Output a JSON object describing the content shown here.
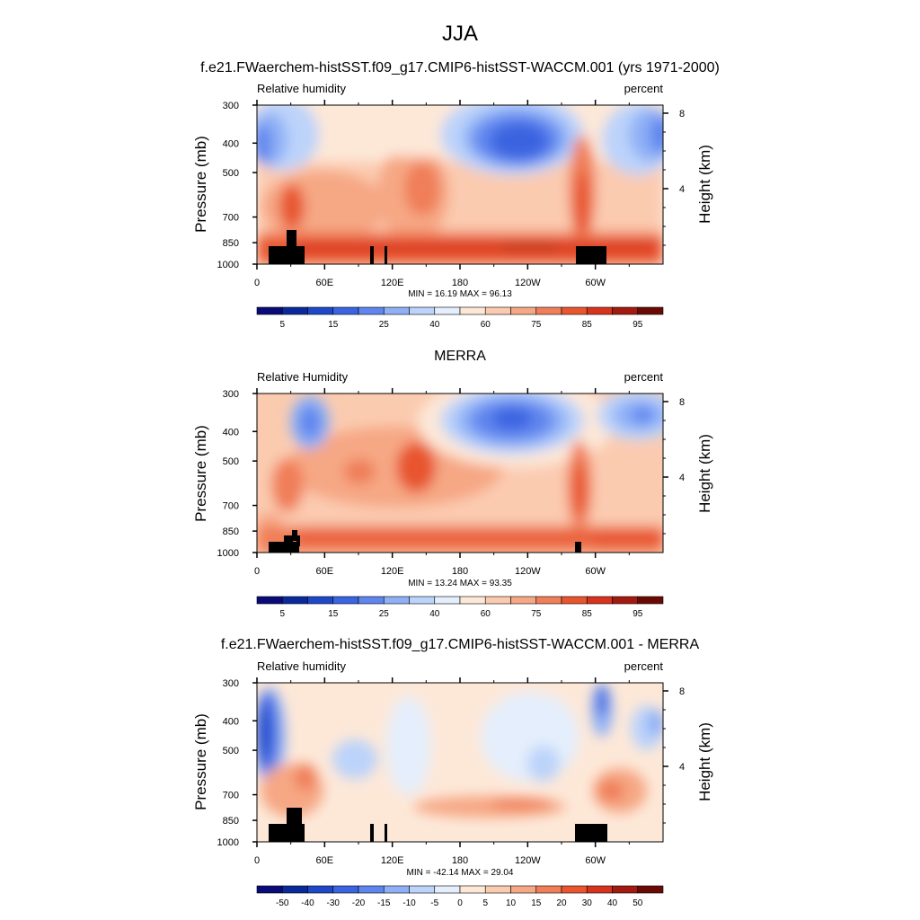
{
  "figure": {
    "title": "JJA"
  },
  "colorbar_colors_abs": [
    "#0a0a78",
    "#0a2a9c",
    "#1f48c8",
    "#3a64e0",
    "#5f85ee",
    "#8fb0f6",
    "#bcd3fa",
    "#e4eefc",
    "#fde8d8",
    "#fbcbb0",
    "#f6a784",
    "#f07e58",
    "#e8552f",
    "#d8331c",
    "#a31a10",
    "#6b0a05"
  ],
  "colorbar_colors_diff": [
    "#0a0a78",
    "#0a2a9c",
    "#1f48c8",
    "#3a64e0",
    "#5f85ee",
    "#8fb0f6",
    "#bcd3fa",
    "#e4eefc",
    "#fde8d8",
    "#fbcbb0",
    "#f6a784",
    "#f07e58",
    "#e8552f",
    "#d8331c",
    "#a31a10",
    "#6b0a05"
  ],
  "chart_data": [
    {
      "type": "heatmap",
      "title": "f.e21.FWaerchem-histSST.f09_g17.CMIP6-histSST-WACCM.001 (yrs 1971-2000)",
      "left_label": "Relative humidity",
      "right_label": "percent",
      "ylabel": "Pressure (mb)",
      "ylabel_right": "Height (km)",
      "x_ticks": [
        "0",
        "60E",
        "120E",
        "180",
        "120W",
        "60W"
      ],
      "x_tick_values": [
        0,
        60,
        120,
        180,
        240,
        300
      ],
      "xlim": [
        0,
        360
      ],
      "y_ticks": [
        "300",
        "400",
        "500",
        "700",
        "850",
        "1000"
      ],
      "y_tick_values": [
        300,
        400,
        500,
        700,
        850,
        1000
      ],
      "ylim": [
        300,
        1000
      ],
      "height_ticks": [
        "8",
        "4"
      ],
      "height_tick_values": [
        8,
        4
      ],
      "stats": "MIN =  16.19  MAX =  96.13",
      "min": 16.19,
      "max": 96.13,
      "colorbar_labels": [
        "5",
        "15",
        "25",
        "40",
        "60",
        "75",
        "85",
        "95"
      ]
    },
    {
      "type": "heatmap",
      "title": "MERRA",
      "left_label": "Relative Humidity",
      "right_label": "percent",
      "ylabel": "Pressure (mb)",
      "ylabel_right": "Height (km)",
      "x_ticks": [
        "0",
        "60E",
        "120E",
        "180",
        "120W",
        "60W"
      ],
      "x_tick_values": [
        0,
        60,
        120,
        180,
        240,
        300
      ],
      "xlim": [
        0,
        360
      ],
      "y_ticks": [
        "300",
        "400",
        "500",
        "700",
        "850",
        "1000"
      ],
      "y_tick_values": [
        300,
        400,
        500,
        700,
        850,
        1000
      ],
      "ylim": [
        300,
        1000
      ],
      "height_ticks": [
        "8",
        "4"
      ],
      "height_tick_values": [
        8,
        4
      ],
      "stats": "MIN =  13.24  MAX =  93.35",
      "min": 13.24,
      "max": 93.35,
      "colorbar_labels": [
        "5",
        "15",
        "25",
        "40",
        "60",
        "75",
        "85",
        "95"
      ]
    },
    {
      "type": "heatmap",
      "title": "f.e21.FWaerchem-histSST.f09_g17.CMIP6-histSST-WACCM.001 - MERRA",
      "left_label": "Relative humidity",
      "right_label": "percent",
      "ylabel": "Pressure (mb)",
      "ylabel_right": "Height (km)",
      "x_ticks": [
        "0",
        "60E",
        "120E",
        "180",
        "120W",
        "60W"
      ],
      "x_tick_values": [
        0,
        60,
        120,
        180,
        240,
        300
      ],
      "xlim": [
        0,
        360
      ],
      "y_ticks": [
        "300",
        "400",
        "500",
        "700",
        "850",
        "1000"
      ],
      "y_tick_values": [
        300,
        400,
        500,
        700,
        850,
        1000
      ],
      "ylim": [
        300,
        1000
      ],
      "height_ticks": [
        "8",
        "4"
      ],
      "height_tick_values": [
        8,
        4
      ],
      "stats": "MIN = -42.14  MAX =  29.04",
      "min": -42.14,
      "max": 29.04,
      "colorbar_labels": [
        "-50",
        "-40",
        "-30",
        "-20",
        "-15",
        "-10",
        "-5",
        "0",
        "5",
        "10",
        "15",
        "20",
        "30",
        "40",
        "50"
      ]
    }
  ]
}
